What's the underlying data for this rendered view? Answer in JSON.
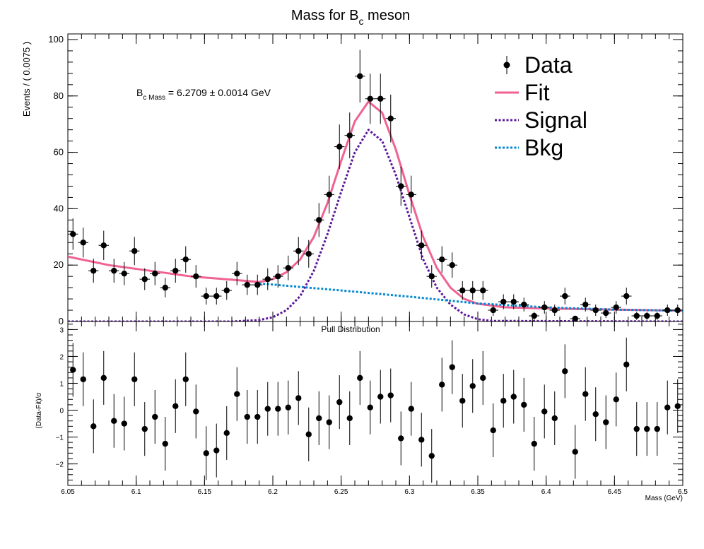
{
  "figure": {
    "title_main": "Mass for B",
    "title_sub": "c",
    "title_tail": " meson",
    "annotation_main": "B",
    "annotation_sub": "c Mass",
    "annotation_tail": " = 6.2709  ± 0.0014 GeV"
  },
  "colors": {
    "data": "#000000",
    "fit": "#f06292",
    "signal": "#5a189a",
    "bkg": "#0288d1"
  },
  "chart_data": [
    {
      "type": "scatter",
      "panel": "top",
      "ylabel": "Events / ( 0.0075 )",
      "xlim": [
        6.05,
        6.5
      ],
      "ylim": [
        0,
        102
      ],
      "yticks": [
        0,
        20,
        40,
        60,
        80,
        100
      ],
      "grid": false,
      "legend_position": "top-right",
      "legend": [
        "Data",
        "Fit",
        "Signal",
        "Bkg"
      ],
      "x": [
        6.05375,
        6.06125,
        6.06875,
        6.07625,
        6.08375,
        6.09125,
        6.09875,
        6.10625,
        6.11375,
        6.12125,
        6.12875,
        6.13625,
        6.14375,
        6.15125,
        6.15875,
        6.16625,
        6.17375,
        6.18125,
        6.18875,
        6.19625,
        6.20375,
        6.21125,
        6.21875,
        6.22625,
        6.23375,
        6.24125,
        6.24875,
        6.25625,
        6.26375,
        6.27125,
        6.27875,
        6.28625,
        6.29375,
        6.30125,
        6.30875,
        6.31625,
        6.32375,
        6.33125,
        6.33875,
        6.34625,
        6.35375,
        6.36125,
        6.36875,
        6.37625,
        6.38375,
        6.39125,
        6.39875,
        6.40625,
        6.41375,
        6.42125,
        6.42875,
        6.43625,
        6.44375,
        6.45125,
        6.45875,
        6.46625,
        6.47375,
        6.48125,
        6.48875,
        6.49625
      ],
      "series": [
        {
          "name": "Data",
          "style": "points with error bars",
          "values": [
            31,
            28,
            18,
            27,
            18,
            17,
            25,
            15,
            17,
            12,
            18,
            22,
            16,
            9,
            9,
            11,
            17,
            13,
            13,
            15,
            16,
            19,
            25,
            24,
            36,
            45,
            62,
            66,
            87,
            79,
            79,
            72,
            48,
            45,
            27,
            16,
            22,
            20,
            11,
            11,
            11,
            4,
            7,
            7,
            6,
            2,
            5,
            4,
            9,
            1,
            6,
            4,
            3,
            5,
            9,
            2,
            2,
            2,
            4,
            4
          ]
        },
        {
          "name": "Fit",
          "style": "solid line",
          "x": [
            6.05,
            6.08,
            6.11,
            6.14,
            6.17,
            6.19,
            6.2,
            6.21,
            6.22,
            6.23,
            6.24,
            6.25,
            6.26,
            6.27,
            6.28,
            6.29,
            6.3,
            6.31,
            6.32,
            6.33,
            6.34,
            6.35,
            6.37,
            6.4,
            6.45,
            6.5
          ],
          "values": [
            23,
            20,
            18,
            16,
            14.8,
            14,
            15,
            17.5,
            22,
            30,
            42,
            57,
            71,
            78,
            74,
            61,
            45,
            30,
            19,
            12,
            8,
            6.3,
            5,
            4.6,
            4.2,
            3.8
          ]
        },
        {
          "name": "Signal",
          "style": "dotted line",
          "x": [
            6.05,
            6.17,
            6.19,
            6.2,
            6.21,
            6.22,
            6.23,
            6.24,
            6.25,
            6.26,
            6.27,
            6.28,
            6.29,
            6.3,
            6.31,
            6.32,
            6.33,
            6.34,
            6.35,
            6.36,
            6.5
          ],
          "values": [
            0,
            0,
            0.5,
            1.5,
            4,
            9,
            18,
            31,
            46,
            60,
            68,
            64,
            52,
            37,
            22,
            12,
            6,
            2.5,
            0.8,
            0.2,
            0
          ]
        },
        {
          "name": "Bkg",
          "style": "dotted line",
          "x": [
            6.19,
            6.25,
            6.3,
            6.35,
            6.4,
            6.45,
            6.5
          ],
          "values": [
            13.5,
            11,
            8.8,
            6.4,
            5,
            4.2,
            3.8
          ]
        }
      ]
    },
    {
      "type": "scatter",
      "panel": "bottom",
      "title": "Pull Distribution",
      "xlabel": "Mass (GeV)",
      "ylabel": "(Data-Fit)/σ",
      "xlim": [
        6.05,
        6.5
      ],
      "ylim": [
        -2.8,
        3.3
      ],
      "xticks": [
        6.05,
        6.1,
        6.15,
        6.2,
        6.25,
        6.3,
        6.35,
        6.4,
        6.45,
        6.5
      ],
      "yticks": [
        -2,
        -1,
        0,
        1,
        2,
        3
      ],
      "grid": false,
      "x": [
        6.05375,
        6.06125,
        6.06875,
        6.07625,
        6.08375,
        6.09125,
        6.09875,
        6.10625,
        6.11375,
        6.12125,
        6.12875,
        6.13625,
        6.14375,
        6.15125,
        6.15875,
        6.16625,
        6.17375,
        6.18125,
        6.18875,
        6.19625,
        6.20375,
        6.21125,
        6.21875,
        6.22625,
        6.23375,
        6.24125,
        6.24875,
        6.25625,
        6.26375,
        6.27125,
        6.27875,
        6.28625,
        6.29375,
        6.30125,
        6.30875,
        6.31625,
        6.32375,
        6.33125,
        6.33875,
        6.34625,
        6.35375,
        6.36125,
        6.36875,
        6.37625,
        6.38375,
        6.39125,
        6.39875,
        6.40625,
        6.41375,
        6.42125,
        6.42875,
        6.43625,
        6.44375,
        6.45125,
        6.45875,
        6.46625,
        6.47375,
        6.48125,
        6.48875,
        6.49625
      ],
      "series": [
        {
          "name": "Pull",
          "style": "points with error bars",
          "values": [
            1.5,
            1.15,
            -0.6,
            1.2,
            -0.4,
            -0.5,
            1.15,
            -0.7,
            -0.25,
            -1.25,
            0.15,
            1.15,
            -0.05,
            -1.6,
            -1.5,
            -0.85,
            0.6,
            -0.25,
            -0.25,
            0.05,
            0.05,
            0.1,
            0.45,
            -0.9,
            -0.3,
            -0.45,
            0.3,
            -0.3,
            1.2,
            0.1,
            0.5,
            0.55,
            -1.05,
            0.05,
            -1.1,
            -1.7,
            0.95,
            1.6,
            0.35,
            0.9,
            1.2,
            -0.75,
            0.35,
            0.5,
            0.2,
            -1.25,
            -0.05,
            -0.3,
            1.45,
            -1.55,
            0.6,
            -0.15,
            -0.45,
            0.4,
            1.7,
            -0.7,
            -0.7,
            -0.7,
            0.1,
            0.15
          ]
        }
      ]
    }
  ]
}
